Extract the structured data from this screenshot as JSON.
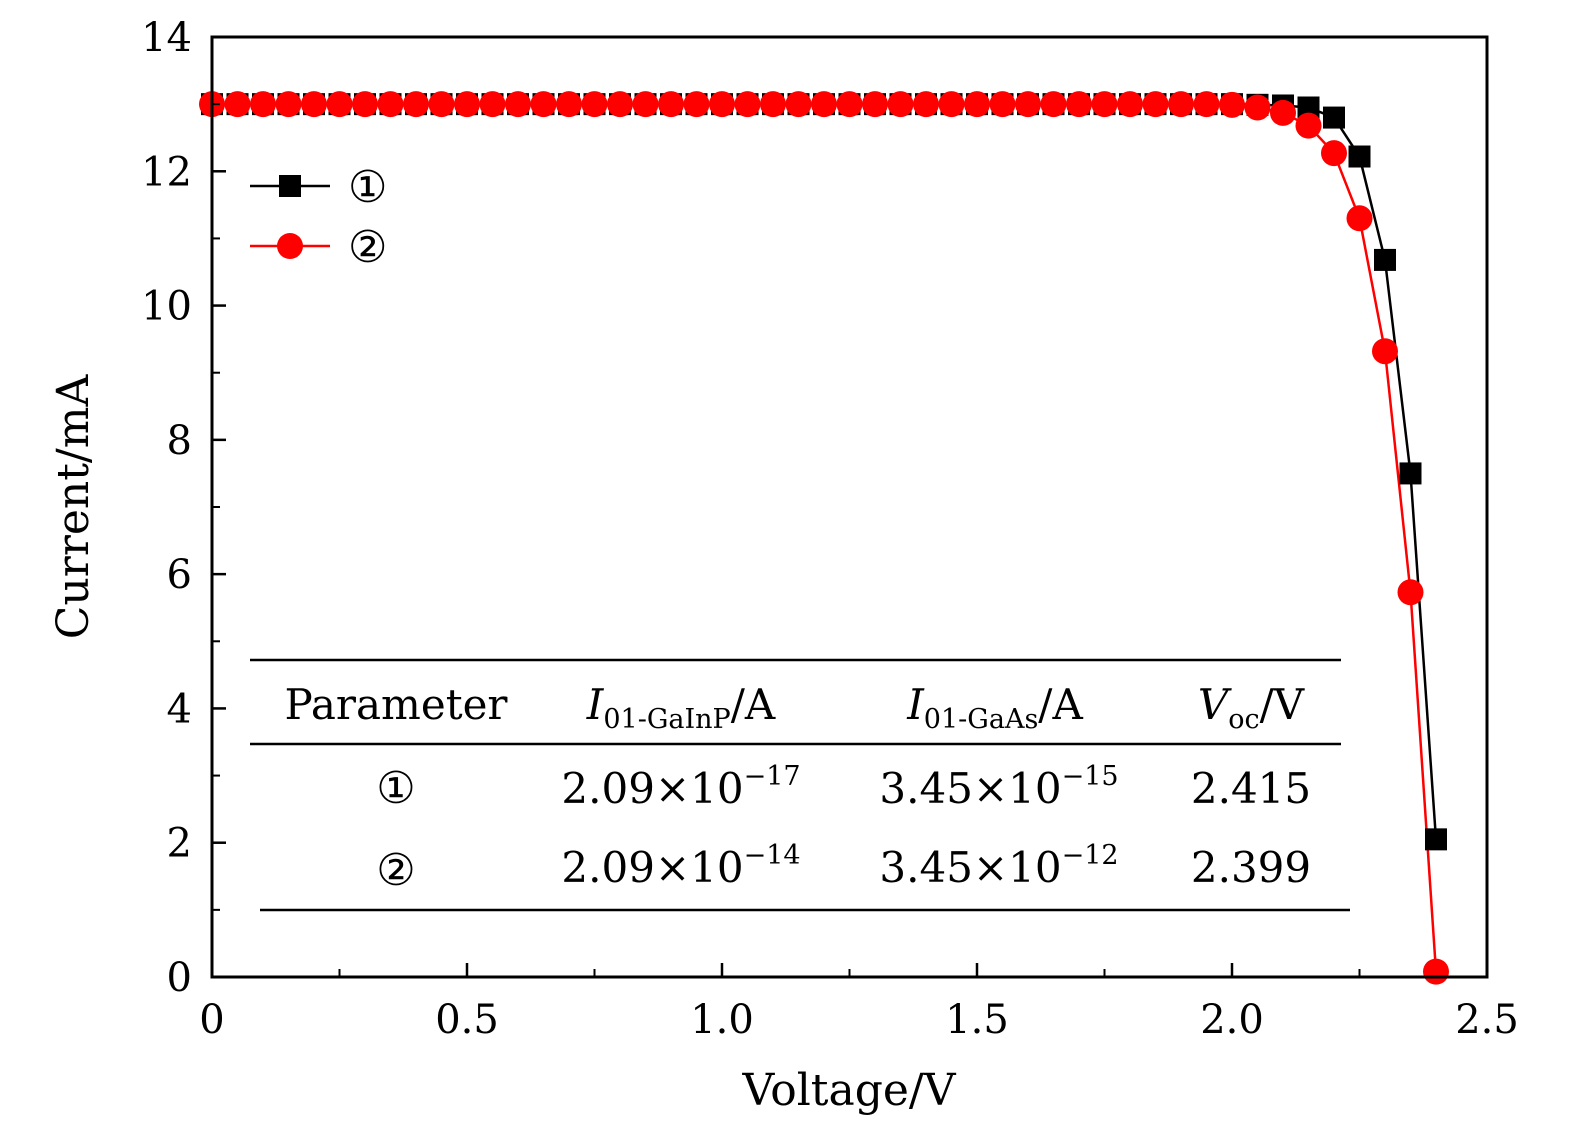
{
  "chart_data": {
    "type": "line",
    "title": "",
    "xlabel": "Voltage/V",
    "ylabel": "Current/mA",
    "xlim": [
      0,
      2.5
    ],
    "ylim": [
      0,
      14
    ],
    "xticks": [
      0,
      0.5,
      1.0,
      1.5,
      2.0,
      2.5
    ],
    "xtick_labels": [
      "0",
      "0.5",
      "1.0",
      "1.5",
      "2.0",
      "2.5"
    ],
    "yticks": [
      0,
      2,
      4,
      6,
      8,
      10,
      12,
      14
    ],
    "ytick_labels": [
      "0",
      "2",
      "4",
      "6",
      "8",
      "10",
      "12",
      "14"
    ],
    "grid": false,
    "legend_position": "top-left",
    "series": [
      {
        "name": "①",
        "color": "#000000",
        "marker": "square",
        "x": [
          0,
          0.05,
          0.1,
          0.15,
          0.2,
          0.25,
          0.3,
          0.35,
          0.4,
          0.45,
          0.5,
          0.55,
          0.6,
          0.65,
          0.7,
          0.75,
          0.8,
          0.85,
          0.9,
          0.95,
          1.0,
          1.05,
          1.1,
          1.15,
          1.2,
          1.25,
          1.3,
          1.35,
          1.4,
          1.45,
          1.5,
          1.55,
          1.6,
          1.65,
          1.7,
          1.75,
          1.8,
          1.85,
          1.9,
          1.95,
          2.0,
          2.05,
          2.1,
          2.15,
          2.2,
          2.25,
          2.3,
          2.35,
          2.4
        ],
        "y": [
          13.0,
          13.0,
          13.0,
          13.0,
          13.0,
          13.0,
          13.0,
          13.0,
          13.0,
          13.0,
          13.0,
          13.0,
          13.0,
          13.0,
          13.0,
          13.0,
          13.0,
          13.0,
          13.0,
          13.0,
          13.0,
          13.0,
          13.0,
          13.0,
          13.0,
          13.0,
          13.0,
          13.0,
          13.0,
          13.0,
          13.0,
          13.0,
          13.0,
          13.0,
          13.0,
          13.0,
          13.0,
          13.0,
          13.0,
          13.0,
          13.0,
          12.99,
          12.98,
          12.95,
          12.8,
          12.22,
          10.68,
          7.5,
          2.05
        ]
      },
      {
        "name": "②",
        "color": "#ff0000",
        "marker": "circle",
        "x": [
          0,
          0.05,
          0.1,
          0.15,
          0.2,
          0.25,
          0.3,
          0.35,
          0.4,
          0.45,
          0.5,
          0.55,
          0.6,
          0.65,
          0.7,
          0.75,
          0.8,
          0.85,
          0.9,
          0.95,
          1.0,
          1.05,
          1.1,
          1.15,
          1.2,
          1.25,
          1.3,
          1.35,
          1.4,
          1.45,
          1.5,
          1.55,
          1.6,
          1.65,
          1.7,
          1.75,
          1.8,
          1.85,
          1.9,
          1.95,
          2.0,
          2.05,
          2.1,
          2.15,
          2.2,
          2.25,
          2.3,
          2.35,
          2.4
        ],
        "y": [
          13.0,
          13.0,
          13.0,
          13.0,
          13.0,
          13.0,
          13.0,
          13.0,
          13.0,
          13.0,
          13.0,
          13.0,
          13.0,
          13.0,
          13.0,
          13.0,
          13.0,
          13.0,
          13.0,
          13.0,
          13.0,
          13.0,
          13.0,
          13.0,
          13.0,
          13.0,
          13.0,
          13.0,
          13.0,
          13.0,
          13.0,
          13.0,
          13.0,
          13.0,
          13.0,
          13.0,
          13.0,
          13.0,
          13.0,
          13.0,
          12.99,
          12.95,
          12.87,
          12.68,
          12.27,
          11.3,
          9.32,
          5.73,
          0.08
        ]
      }
    ],
    "inset_table": {
      "headers": [
        {
          "main": "Parameter",
          "italic": "",
          "sub": "",
          "unit": ""
        },
        {
          "main": "",
          "italic": "I",
          "sub": "01-GaInP",
          "unit": "/A"
        },
        {
          "main": "",
          "italic": "I",
          "sub": "01-GaAs",
          "unit": "/A"
        },
        {
          "main": "",
          "italic": "V",
          "sub": "oc",
          "unit": "/V"
        }
      ],
      "rows": [
        {
          "label": "①",
          "i_gainp": {
            "mantissa": "2.09",
            "exp": "−17"
          },
          "i_gaas": {
            "mantissa": "3.45",
            "exp": "−15"
          },
          "voc": "2.415"
        },
        {
          "label": "②",
          "i_gainp": {
            "mantissa": "2.09",
            "exp": "−14"
          },
          "i_gaas": {
            "mantissa": "3.45",
            "exp": "−12"
          },
          "voc": "2.399"
        }
      ],
      "times_symbol": "×",
      "base": "10"
    }
  }
}
